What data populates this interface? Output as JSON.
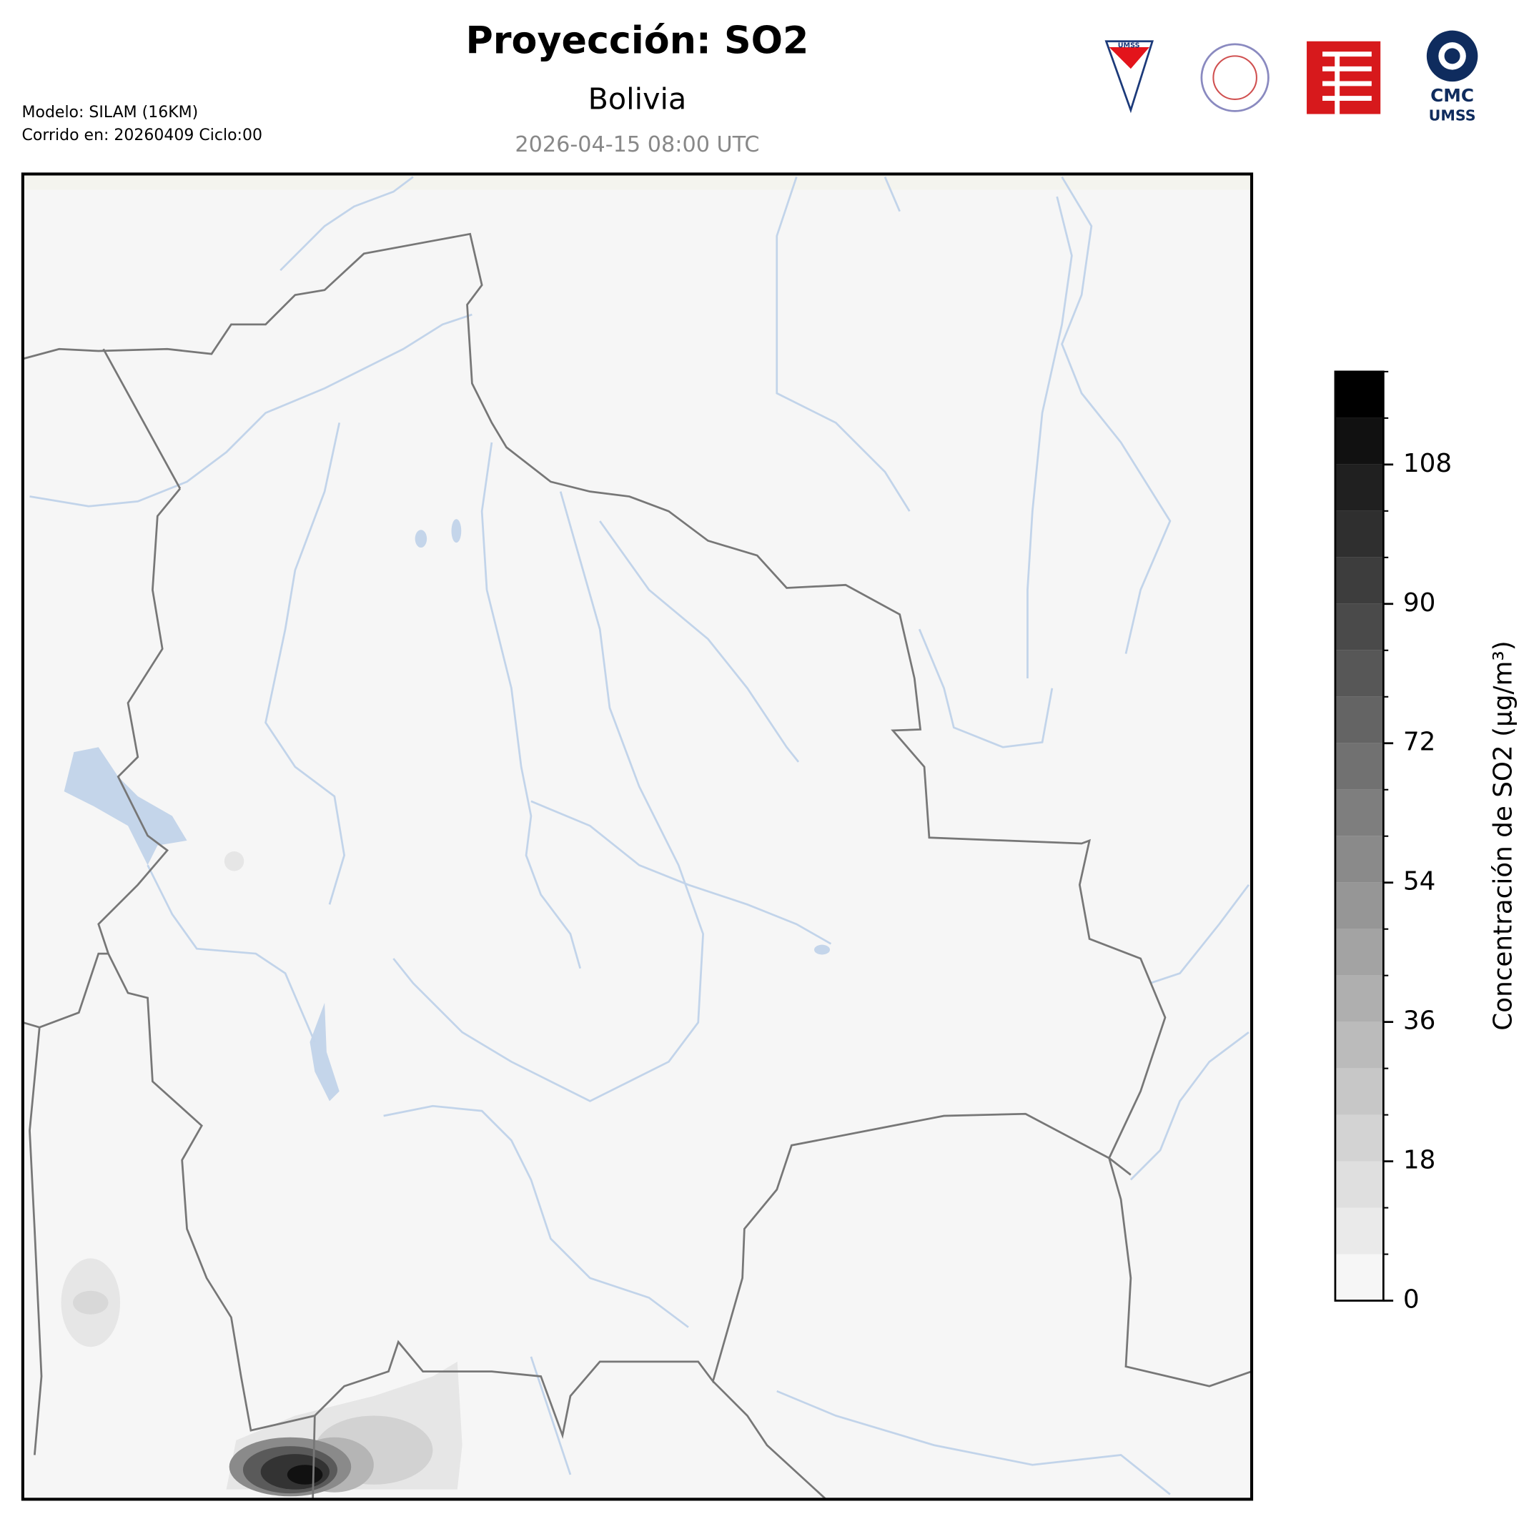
{
  "header": {
    "title": "Proyección: SO2",
    "subtitle": "Bolivia",
    "datetime": "2026-04-15 08:00 UTC"
  },
  "model_info": [
    "Modelo: SILAM (16KM)",
    "Corrido en: 20260409 Ciclo:00"
  ],
  "logos": {
    "umss_shield": "UMSS",
    "cmc": "CMC",
    "umss": "UMSS"
  },
  "colorbar": {
    "label": "Concentración de SO2 (µg/m³)",
    "lim": [
      0,
      120
    ],
    "ticks": [
      0,
      18,
      36,
      54,
      72,
      90,
      108
    ],
    "levels": [
      0,
      6,
      12,
      18,
      24,
      30,
      36,
      42,
      48,
      54,
      60,
      66,
      72,
      78,
      84,
      90,
      96,
      102,
      108,
      114,
      120
    ]
  }
}
